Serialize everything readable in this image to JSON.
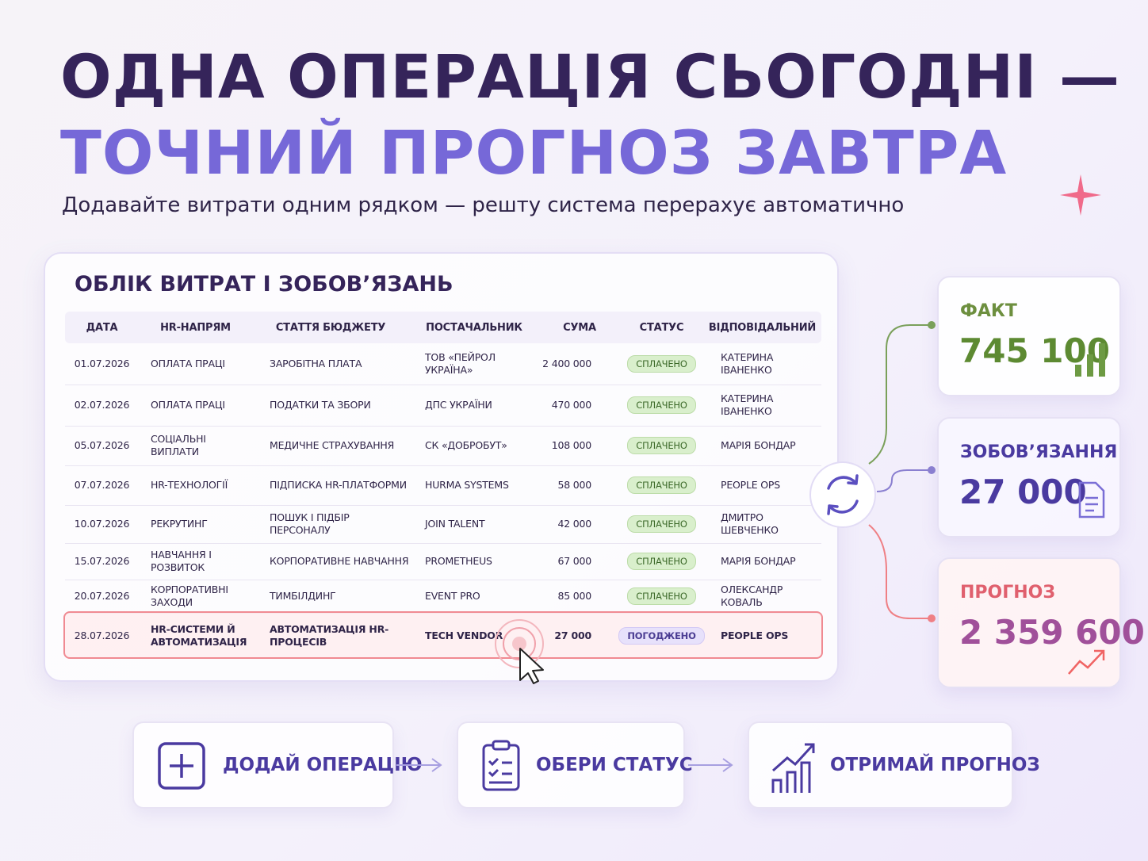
{
  "header": {
    "title_line1": "ОДНА ОПЕРАЦІЯ СЬОГОДНІ —",
    "title_line2": "ТОЧНИЙ ПРОГНОЗ ЗАВТРА",
    "subtitle": "Додавайте витрати одним рядком — решту система перерахує автоматично"
  },
  "table": {
    "title": "ОБЛІК ВИТРАТ І ЗОБОВ’ЯЗАНЬ",
    "columns": [
      "ДАТА",
      "HR-НАПРЯМ",
      "СТАТТЯ БЮДЖЕТУ",
      "ПОСТАЧАЛЬНИК",
      "СУМА",
      "СТАТУС",
      "ВІДПОВІДАЛЬНИЙ"
    ],
    "rows": [
      [
        "01.07.2026",
        "ОПЛАТА ПРАЦІ",
        "ЗАРОБІТНА ПЛАТА",
        "ТОВ «ПЕЙРОЛ УКРАЇНА»",
        "2 400 000",
        "СПЛАЧЕНО",
        "КАТЕРИНА ІВАНЕНКО"
      ],
      [
        "02.07.2026",
        "ОПЛАТА ПРАЦІ",
        "ПОДАТКИ ТА ЗБОРИ",
        "ДПС УКРАЇНИ",
        "470 000",
        "СПЛАЧЕНО",
        "КАТЕРИНА ІВАНЕНКО"
      ],
      [
        "05.07.2026",
        "СОЦІАЛЬНІ ВИПЛАТИ",
        "МЕДИЧНЕ СТРАХУВАННЯ",
        "СК «ДОБРОБУТ»",
        "108 000",
        "СПЛАЧЕНО",
        "МАРІЯ БОНДАР"
      ],
      [
        "07.07.2026",
        "HR-ТЕХНОЛОГІЇ",
        "ПІДПИСКА HR-ПЛАТФОРМИ",
        "HURMA SYSTEMS",
        "58 000",
        "СПЛАЧЕНО",
        "PEOPLE OPS"
      ],
      [
        "10.07.2026",
        "РЕКРУТИНГ",
        "ПОШУК І ПІДБІР ПЕРСОНАЛУ",
        "JOIN TALENT",
        "42 000",
        "СПЛАЧЕНО",
        "ДМИТРО ШЕВЧЕНКО"
      ],
      [
        "15.07.2026",
        "НАВЧАННЯ І РОЗВИТОК",
        "КОРПОРАТИВНЕ НАВЧАННЯ",
        "PROMETHEUS",
        "67 000",
        "СПЛАЧЕНО",
        "МАРІЯ БОНДАР"
      ],
      [
        "20.07.2026",
        "КОРПОРАТИВНІ ЗАХОДИ",
        "ТИМБІЛДИНГ",
        "EVENT PRO",
        "85 000",
        "СПЛАЧЕНО",
        "ОЛЕКСАНДР КОВАЛЬ"
      ],
      [
        "28.07.2026",
        "HR-СИСТЕМИ Й АВТОМАТИЗАЦІЯ",
        "АВТОМАТИЗАЦІЯ HR-ПРОЦЕСІВ",
        "TECH VENDOR",
        "27 000",
        "ПОГОДЖЕНО",
        "PEOPLE OPS"
      ]
    ]
  },
  "cards": [
    {
      "label": "ФАКТ",
      "value": "745 100"
    },
    {
      "label": "ЗОБОВ’ЯЗАННЯ",
      "value": "27 000"
    },
    {
      "label": "ПРОГНОЗ",
      "value": "2 359 600"
    }
  ],
  "steps": [
    "ДОДАЙ ОПЕРАЦІЮ",
    "ОБЕРИ СТАТУС",
    "ОТРИМАЙ ПРОГНОЗ"
  ]
}
